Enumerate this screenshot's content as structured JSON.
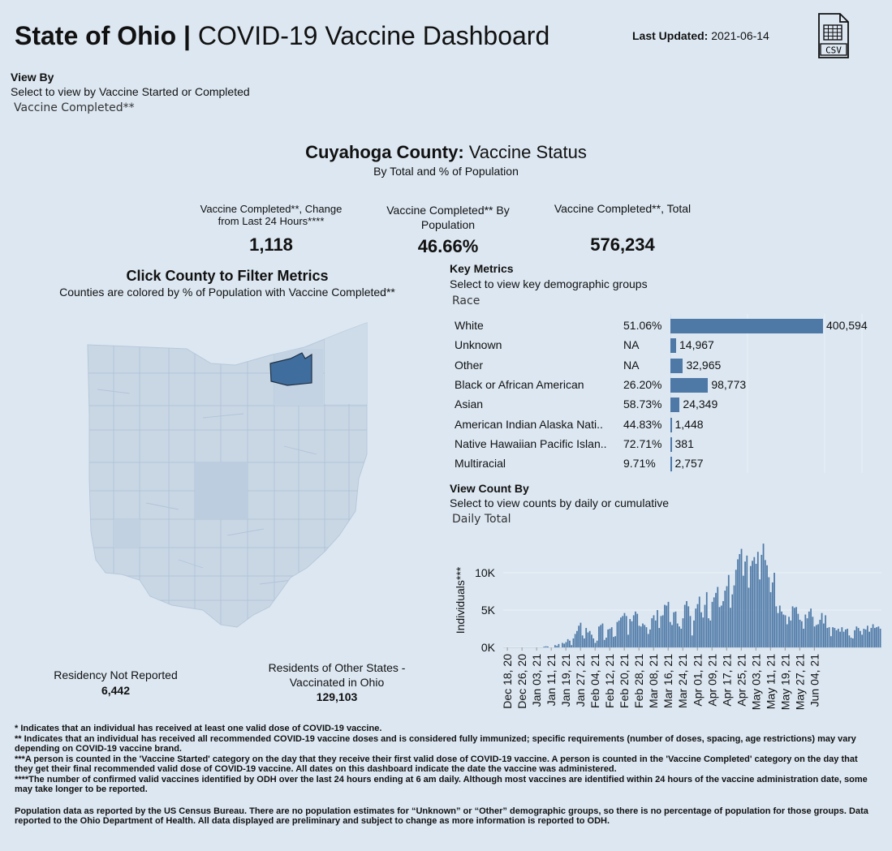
{
  "header": {
    "title_bold": "State of Ohio |",
    "title_rest": " COVID-19 Vaccine Dashboard",
    "last_updated_label": "Last Updated:",
    "last_updated_value": " 2021-06-14",
    "csv_label": "CSV",
    "csv_icon": "csv-file-icon"
  },
  "view_by": {
    "label": "View By",
    "subtitle": "Select to view by Vaccine Started or Completed",
    "selected": "Vaccine Completed**"
  },
  "county": {
    "name": "Cuyahoga County:",
    "status": " Vaccine Status",
    "subtitle": "By Total and % of Population"
  },
  "kpis": [
    {
      "label": "Vaccine Completed**, Change from Last 24 Hours****",
      "value": "1,118"
    },
    {
      "label": "Vaccine Completed** By Population",
      "value": "46.66%"
    },
    {
      "label": "Vaccine Completed**, Total",
      "value": "576,234"
    }
  ],
  "map": {
    "title": "Click County to Filter Metrics",
    "subtitle": "Counties are colored by % of Population with Vaccine Completed**",
    "base_color": "#c9d7e5",
    "highlight_color": "#3f6e9e"
  },
  "residency": {
    "not_reported_label": "Residency Not Reported",
    "not_reported_value": "6,442",
    "other_states_label": "Residents of Other States - Vaccinated in Ohio",
    "other_states_value": "129,103"
  },
  "key_metrics": {
    "title": "Key Metrics",
    "subtitle": "Select to view key demographic groups",
    "selected": "Race",
    "bar_color": "#4e79a7",
    "max_value": 400594,
    "rows": [
      {
        "name": "White",
        "pct": "51.06%",
        "count": 400594,
        "count_label": "400,594"
      },
      {
        "name": "Unknown",
        "pct": "NA",
        "count": 14967,
        "count_label": "14,967"
      },
      {
        "name": "Other",
        "pct": "NA",
        "count": 32965,
        "count_label": "32,965"
      },
      {
        "name": "Black or African American",
        "pct": "26.20%",
        "count": 98773,
        "count_label": "98,773"
      },
      {
        "name": "Asian",
        "pct": "58.73%",
        "count": 24349,
        "count_label": "24,349"
      },
      {
        "name": "American Indian Alaska Nati..",
        "pct": "44.83%",
        "count": 1448,
        "count_label": "1,448"
      },
      {
        "name": "Native Hawaiian Pacific Islan..",
        "pct": "72.71%",
        "count": 381,
        "count_label": "381"
      },
      {
        "name": "Multiracial",
        "pct": "9.71%",
        "count": 2757,
        "count_label": "2,757"
      }
    ]
  },
  "view_count": {
    "title": "View Count By",
    "subtitle": "Select to view counts by daily or cumulative",
    "selected": "Daily Total"
  },
  "chart_data": {
    "type": "bar",
    "title": "",
    "xlabel": "",
    "ylabel": "Individuals***",
    "ylim": [
      0,
      14000
    ],
    "yticks": [
      0,
      5000,
      10000
    ],
    "ytick_labels": [
      "0K",
      "5K",
      "10K"
    ],
    "xtick_labels": [
      "Dec 18, 20",
      "Dec 26, 20",
      "Jan 03, 21",
      "Jan 11, 21",
      "Jan 19, 21",
      "Jan 27, 21",
      "Feb 04, 21",
      "Feb 12, 21",
      "Feb 20, 21",
      "Feb 28, 21",
      "Mar 08, 21",
      "Mar 16, 21",
      "Mar 24, 21",
      "Apr 01, 21",
      "Apr 09, 21",
      "Apr 17, 21",
      "Apr 25, 21",
      "May 03, 21",
      "May 11, 21",
      "May 19, 21",
      "May 27, 21",
      "Jun 04, 21"
    ],
    "start_date": "Dec 18, 20",
    "bar_color": "#4e79a7",
    "values": [
      0,
      0,
      0,
      0,
      0,
      0,
      0,
      0,
      0,
      0,
      0,
      0,
      0,
      0,
      0,
      0,
      0,
      0,
      0,
      0,
      0,
      0,
      100,
      150,
      120,
      0,
      0,
      0,
      300,
      200,
      450,
      0,
      600,
      500,
      700,
      1100,
      900,
      300,
      1200,
      1800,
      2200,
      2900,
      3300,
      1600,
      1200,
      2600,
      2000,
      2200,
      1700,
      1200,
      600,
      900,
      2800,
      3000,
      3200,
      1000,
      1300,
      2400,
      2500,
      2700,
      1400,
      1500,
      3400,
      3600,
      4000,
      4200,
      4600,
      4200,
      1700,
      3800,
      3500,
      4300,
      4800,
      4500,
      2900,
      2800,
      3200,
      3000,
      2700,
      1800,
      2400,
      3900,
      4300,
      3600,
      5000,
      2600,
      4200,
      4300,
      5700,
      5600,
      6100,
      3400,
      3000,
      4700,
      4800,
      3200,
      2800,
      2500,
      3900,
      5700,
      6200,
      5500,
      4200,
      1600,
      3600,
      5200,
      5800,
      6800,
      4700,
      4000,
      5700,
      7400,
      3900,
      3600,
      6100,
      6700,
      7300,
      8100,
      5400,
      5600,
      6200,
      7600,
      8200,
      9700,
      5300,
      7100,
      8300,
      10400,
      11800,
      12500,
      13200,
      9600,
      11500,
      12300,
      8000,
      10900,
      11600,
      12100,
      11200,
      12800,
      9100,
      12400,
      13900,
      11700,
      11000,
      9400,
      7400,
      8700,
      10000,
      5500,
      4600,
      5600,
      4800,
      4400,
      4300,
      3100,
      4100,
      3600,
      5500,
      5300,
      5400,
      4500,
      3700,
      3500,
      2500,
      4400,
      3900,
      4800,
      5200,
      4100,
      2800,
      3000,
      3100,
      3700,
      4600,
      3200,
      4300,
      2600,
      2700,
      1500,
      2700,
      2600,
      2300,
      2500,
      2100,
      2700,
      2100,
      2400,
      2500,
      1600,
      1300,
      1200,
      2300,
      2800,
      2600,
      2200,
      1700,
      2500,
      2400,
      2900,
      2100,
      2600,
      3100,
      2600,
      2700,
      2800,
      2500
    ]
  },
  "footnotes": {
    "f1": "* Indicates that an individual has received at least one valid dose of COVID-19 vaccine.",
    "f2": "** Indicates that an individual has received all recommended COVID-19 vaccine doses and is considered fully immunized; specific requirements (number of doses, spacing, age restrictions) may vary depending on COVID-19 vaccine brand.",
    "f3": "***A person is counted in the 'Vaccine Started' category on the day that they receive their first valid dose of COVID-19 vaccine.  A person is counted in the 'Vaccine Completed' category on the day that they get their final recommended valid dose of COVID-19 vaccine. All dates on this dashboard indicate the date the vaccine was administered.",
    "f4": "****The number of confirmed valid vaccines identified by ODH over the last 24 hours ending at 6 am daily. Although most vaccines are identified within 24 hours of the vaccine administration date, some may take longer to be reported.",
    "f5": "Population data as reported by the US Census Bureau. There are no population estimates for “Unknown” or “Other” demographic groups, so there is no percentage of population for those groups.  Data reported to the Ohio Department of Health.  All data displayed are preliminary and subject to change as more information is reported to ODH."
  }
}
